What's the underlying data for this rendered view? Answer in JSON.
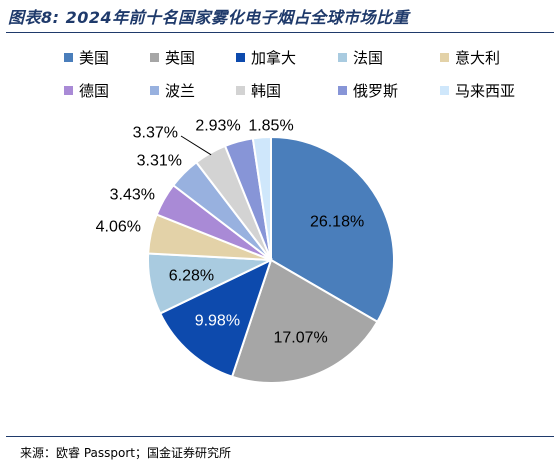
{
  "title": "图表8: 2024年前十名国家雾化电子烟占全球市场比重",
  "source": "来源：欧睿 Passport；国金证券研究所",
  "chart_data": {
    "type": "pie",
    "legend_position": "top",
    "categories": [
      "美国",
      "英国",
      "加拿大",
      "法国",
      "意大利",
      "德国",
      "波兰",
      "韩国",
      "俄罗斯",
      "马来西亚"
    ],
    "values": [
      26.18,
      17.07,
      9.98,
      6.28,
      4.06,
      3.43,
      3.31,
      3.37,
      2.93,
      1.85
    ],
    "labels": [
      "26.18%",
      "17.07%",
      "9.98%",
      "6.28%",
      "4.06%",
      "3.43%",
      "3.31%",
      "3.37%",
      "2.93%",
      "1.85%"
    ],
    "colors": [
      "#4a7ebb",
      "#a6a6a6",
      "#0d4aad",
      "#a9cbe0",
      "#e3d2a8",
      "#a98ad6",
      "#98b1df",
      "#d3d3d3",
      "#8795d7",
      "#cfe7fb"
    ]
  }
}
